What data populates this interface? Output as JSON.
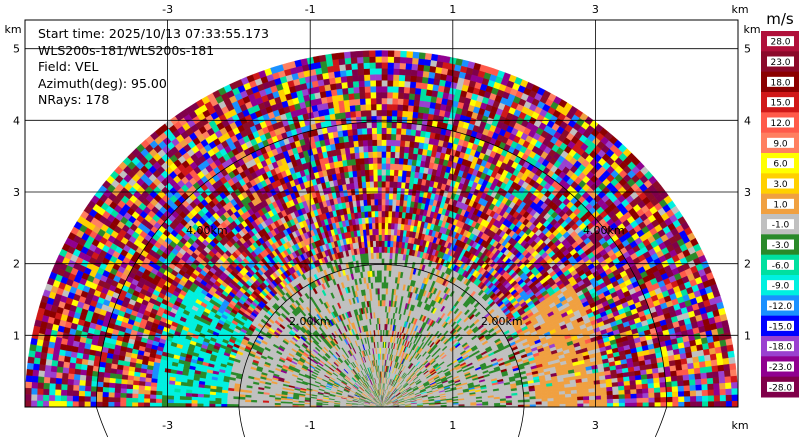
{
  "info": {
    "start_time": "Start time: 2025/10/13 07:33:55.173",
    "station": "WLS200s-181/WLS200s-181",
    "field": "Field: VEL",
    "azimuth": "Azimuth(deg): 95.00",
    "nrays": "NRays: 178"
  },
  "axis_unit": "km",
  "colorbar": {
    "unit": "m/s",
    "levels": [
      "28.0",
      "23.0",
      "18.0",
      "15.0",
      "12.0",
      "9.0",
      "6.0",
      "3.0",
      "1.0",
      "-1.0",
      "-3.0",
      "-6.0",
      "-9.0",
      "-12.0",
      "-15.0",
      "-18.0",
      "-23.0",
      "-28.0"
    ],
    "colors": [
      "#b0103a",
      "#8b0a2a",
      "#8b0000",
      "#d01818",
      "#ff5a4a",
      "#ff7f60",
      "#ffff00",
      "#ffd000",
      "#f0a040",
      "#c0c0c0",
      "#2a8a2a",
      "#00e0a0",
      "#00f0e0",
      "#1a90ff",
      "#0000ff",
      "#9a40d0",
      "#900090",
      "#80004a"
    ]
  },
  "range_rings": [
    "4.00km",
    "2.00km"
  ],
  "chart_data": {
    "type": "heatmap",
    "subtype": "RHI radar scan (half-disk, radial velocity)",
    "field": "VEL",
    "units": "m/s",
    "xlim": [
      -5,
      5
    ],
    "ylim": [
      0,
      5.4
    ],
    "x_ticks": [
      -3,
      -1,
      1,
      3
    ],
    "y_ticks": [
      1,
      2,
      3,
      4,
      5
    ],
    "max_range_km": 5.0,
    "range_rings_km": [
      2,
      4
    ],
    "grid": true,
    "color_scale": [
      -28,
      -23,
      -18,
      -15,
      -12,
      -9,
      -6,
      -3,
      -1,
      1,
      3,
      6,
      9,
      12,
      15,
      18,
      23,
      28
    ],
    "structure": {
      "inner_band_km": [
        0,
        2.2
      ],
      "inner_band_dominant_values": [
        -1,
        1,
        -3
      ],
      "middle_band_km": [
        2.2,
        3.2
      ],
      "middle_band_left_value": -6,
      "middle_band_right_value": 1,
      "outer_band_km": [
        3.2,
        5.0
      ],
      "outer_band": "noisy (all levels)"
    }
  }
}
